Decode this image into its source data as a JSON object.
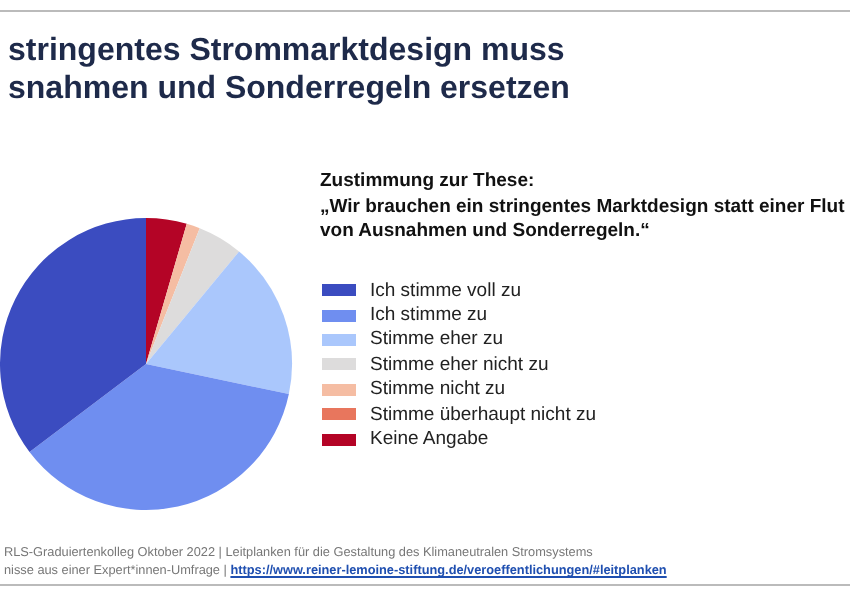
{
  "chart_data": {
    "type": "pie",
    "title": "stringentes Strommarktdesign muss\nsnahmen und Sonderregeln ersetzen",
    "legend_title": "Zustimmung zur These:\n„Wir brauchen ein stringentes Marktdesign statt einer Flut\nvon Ausnahmen und Sonderregeln.“",
    "categories": [
      "Ich stimme voll zu",
      "Ich stimme zu",
      "Stimme eher zu",
      "Stimme eher nicht zu",
      "Stimme nicht zu",
      "Stimme überhaupt nicht zu",
      "Keine Angabe"
    ],
    "values": [
      35.3,
      36.4,
      17.3,
      5.0,
      1.5,
      0,
      4.5
    ],
    "colors": [
      "#3b4cc0",
      "#6f8ef0",
      "#aac7fc",
      "#dddcdc",
      "#f5bda3",
      "#e8765d",
      "#b40426"
    ],
    "legend": "right",
    "annotations": [
      "RLS-Graduiertenkolleg Oktober 2022 | Leitplanken für die Gestaltung des Klimaneutralen Stromsystems",
      "nisse aus einer Expert*innen-Umfrage | https://www.reiner-lemoine-stiftung.de/veroeffentlichungen/#leitplanken"
    ]
  }
}
